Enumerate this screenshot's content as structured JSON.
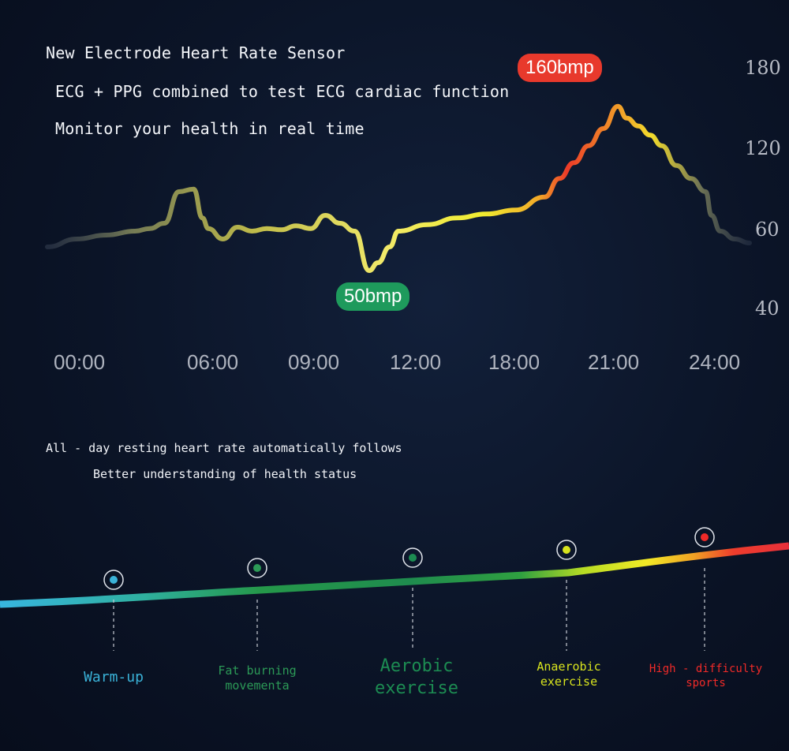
{
  "headlines": {
    "line1": "New Electrode Heart Rate Sensor",
    "line2": "ECG + PPG combined to test ECG cardiac function",
    "line3": "Monitor your health in real time"
  },
  "chart_data": {
    "type": "line",
    "title": "",
    "xlabel": "",
    "ylabel": "",
    "x_ticks": [
      "00:00",
      "06:00",
      "09:00",
      "12:00",
      "18:00",
      "21:00",
      "24:00"
    ],
    "y_ticks": [
      "180",
      "120",
      "60",
      "40"
    ],
    "annotations": [
      {
        "label": "160bmp",
        "color": "#e8392c"
      },
      {
        "label": "50bmp",
        "color": "#1e9a5c"
      }
    ],
    "series": [
      {
        "values": [
          [
            0.0,
            56
          ],
          [
            1.0,
            58
          ],
          [
            2.0,
            59
          ],
          [
            3.0,
            60
          ],
          [
            3.5,
            62
          ],
          [
            4.0,
            66
          ],
          [
            4.5,
            90
          ],
          [
            5.0,
            92
          ],
          [
            5.3,
            70
          ],
          [
            5.5,
            62
          ],
          [
            6.0,
            58
          ],
          [
            6.5,
            63
          ],
          [
            7.0,
            60
          ],
          [
            7.5,
            62
          ],
          [
            8.0,
            61
          ],
          [
            8.5,
            64
          ],
          [
            9.0,
            62
          ],
          [
            9.5,
            72
          ],
          [
            10.0,
            66
          ],
          [
            10.5,
            60
          ],
          [
            11.0,
            50
          ],
          [
            11.3,
            52
          ],
          [
            11.7,
            56
          ],
          [
            12.0,
            60
          ],
          [
            13.0,
            65
          ],
          [
            14.0,
            70
          ],
          [
            15.0,
            73
          ],
          [
            16.0,
            76
          ],
          [
            17.0,
            86
          ],
          [
            17.5,
            100
          ],
          [
            18.0,
            112
          ],
          [
            18.5,
            125
          ],
          [
            19.0,
            138
          ],
          [
            19.5,
            155
          ],
          [
            19.8,
            146
          ],
          [
            20.2,
            140
          ],
          [
            20.6,
            133
          ],
          [
            21.0,
            125
          ],
          [
            21.5,
            110
          ],
          [
            22.0,
            100
          ],
          [
            22.5,
            90
          ],
          [
            22.7,
            72
          ],
          [
            23.0,
            60
          ],
          [
            23.5,
            58
          ],
          [
            24.0,
            57
          ]
        ]
      }
    ]
  },
  "notes": {
    "line1": "All - day resting heart rate automatically follows",
    "line2": "Better understanding of health status"
  },
  "zones": [
    {
      "label": "Warm-up",
      "color": "#3ab2d8"
    },
    {
      "label": "Fat burning\nmovementa",
      "color": "#2c9a57"
    },
    {
      "label": "Aerobic\nexercise",
      "color": "#1c8c52"
    },
    {
      "label": "Anaerobic\nexercise",
      "color": "#d8e41e"
    },
    {
      "label": "High - difficulty\nsports",
      "color": "#f02a28"
    }
  ]
}
